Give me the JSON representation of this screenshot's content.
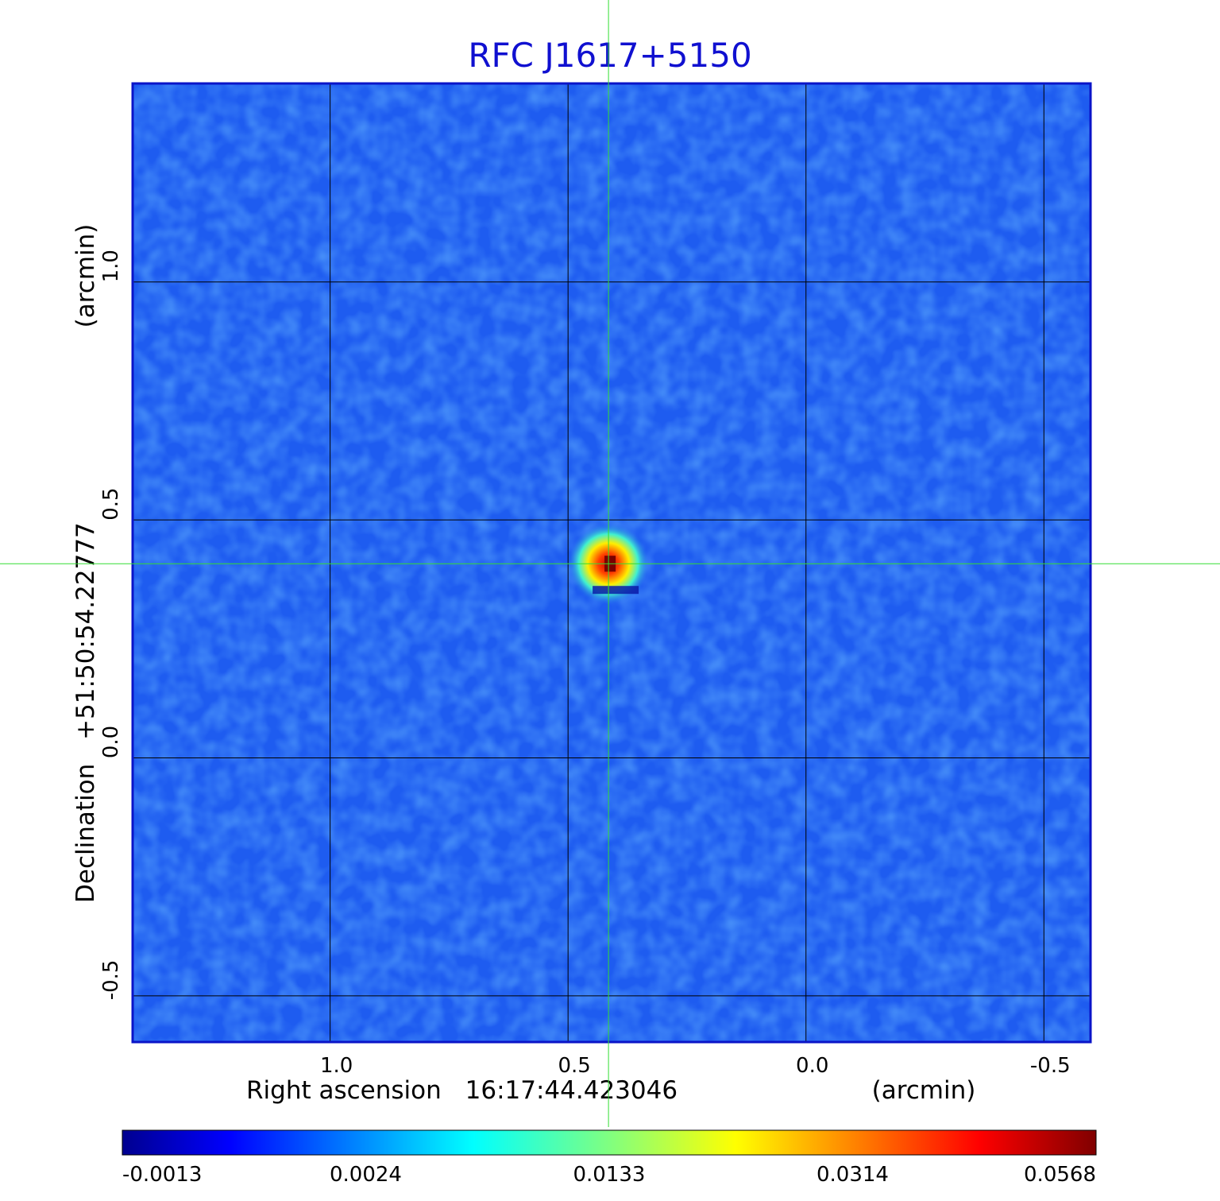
{
  "chart_data": {
    "type": "heatmap",
    "title": "RFC J1617+5150",
    "x_axis": {
      "label": "Right ascension",
      "reference": "16:17:44.423046",
      "unit": "(arcmin)",
      "ticks": [
        1.0,
        0.5,
        0.0,
        -0.5
      ],
      "tick_labels": [
        "1.0",
        "0.5",
        "0.0",
        "-0.5"
      ],
      "range": [
        1.415,
        -0.598
      ]
    },
    "y_axis": {
      "label": "Declination",
      "reference": "+51:50:54.22777",
      "unit": "(arcmin)",
      "ticks": [
        1.0,
        0.5,
        0.0,
        -0.5
      ],
      "tick_labels": [
        "1.0",
        "0.5",
        "0.0",
        "-0.5"
      ],
      "range": [
        -0.597,
        1.417
      ]
    },
    "grid": true,
    "source": {
      "x": 0.415,
      "y": 0.408,
      "peak": 0.0568
    },
    "crosshair": {
      "x": 0.415,
      "y": 0.408,
      "color": "#33dd33"
    },
    "colorbar": {
      "placement": "bottom",
      "ticks": [
        -0.0013,
        0.0024,
        0.0133,
        0.0314,
        0.0568
      ],
      "tick_labels": [
        "-0.0013",
        "0.0024",
        "0.0133",
        "0.0314",
        "0.0568"
      ],
      "colormap": "jet"
    },
    "colors": {
      "frame": "#0a14c8",
      "grid": "#000000",
      "title": "#1010d0",
      "background_map": "#1e5cf0"
    }
  }
}
